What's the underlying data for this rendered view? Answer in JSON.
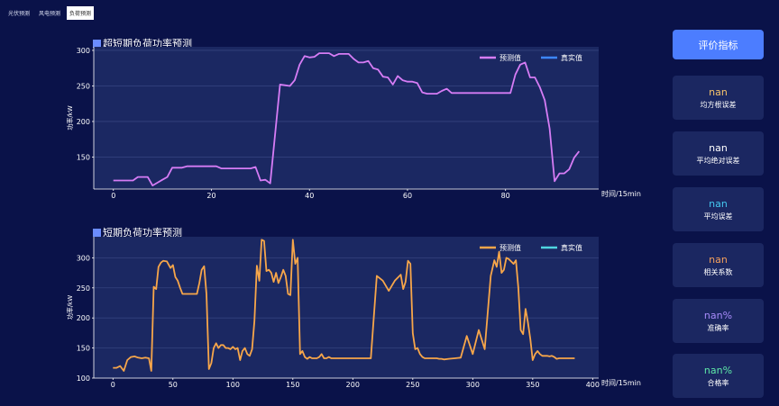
{
  "tabs": [
    {
      "label": "光伏预测",
      "active": false
    },
    {
      "label": "风电预测",
      "active": false
    },
    {
      "label": "负荷预测",
      "active": true
    }
  ],
  "evaluate_button": "评价指标",
  "metrics": [
    {
      "value": "nan",
      "label": "均方根误差",
      "color": "#f5c26b"
    },
    {
      "value": "nan",
      "label": "平均绝对误差",
      "color": "#ffffff"
    },
    {
      "value": "nan",
      "label": "平均误差",
      "color": "#45c8f0"
    },
    {
      "value": "nan",
      "label": "相关系数",
      "color": "#f5a05b"
    },
    {
      "value": "nan%",
      "label": "准确率",
      "color": "#a78bfa"
    },
    {
      "value": "nan%",
      "label": "合格率",
      "color": "#5ee8a8"
    }
  ],
  "chart_data": [
    {
      "type": "line",
      "title": "超短期负荷功率预测",
      "xlabel": "时间/15min",
      "ylabel": "功率/kW",
      "xlim": [
        -4,
        99
      ],
      "ylim": [
        105,
        305
      ],
      "xticks": [
        0,
        20,
        40,
        60,
        80
      ],
      "yticks": [
        150,
        200,
        250,
        300
      ],
      "grid": true,
      "legend_position": "top-right",
      "series": [
        {
          "name": "预测值",
          "color": "#d67cf5",
          "x": [
            0,
            1,
            2,
            3,
            4,
            5,
            6,
            7,
            8,
            9,
            10,
            11,
            12,
            13,
            14,
            15,
            16,
            17,
            18,
            19,
            20,
            21,
            22,
            23,
            24,
            25,
            26,
            27,
            28,
            29,
            30,
            31,
            32,
            33,
            34,
            35,
            36,
            37,
            38,
            39,
            40,
            41,
            42,
            43,
            44,
            45,
            46,
            47,
            48,
            49,
            50,
            51,
            52,
            53,
            54,
            55,
            56,
            57,
            58,
            59,
            60,
            61,
            62,
            63,
            64,
            65,
            66,
            67,
            68,
            69,
            70,
            71,
            72,
            73,
            74,
            75,
            76,
            77,
            78,
            79,
            80,
            81,
            82,
            83,
            84,
            85,
            86,
            87,
            88,
            89,
            90,
            91,
            92,
            93,
            94,
            95
          ],
          "values": [
            117,
            117,
            117,
            117,
            117,
            122,
            122,
            122,
            110,
            114,
            118,
            122,
            135,
            135,
            135,
            137,
            137,
            137,
            137,
            137,
            137,
            137,
            134,
            134,
            134,
            134,
            134,
            134,
            134,
            136,
            117,
            118,
            113,
            183,
            252,
            251,
            250,
            258,
            280,
            292,
            290,
            291,
            296,
            296,
            296,
            292,
            295,
            295,
            295,
            288,
            283,
            283,
            285,
            275,
            273,
            263,
            262,
            252,
            264,
            258,
            256,
            256,
            254,
            241,
            239,
            239,
            239,
            243,
            246,
            240,
            240,
            240,
            240,
            240,
            240,
            240,
            240,
            240,
            240,
            240,
            240,
            240,
            266,
            280,
            283,
            262,
            262,
            248,
            230,
            190,
            116,
            127,
            127,
            133,
            149,
            158
          ]
        },
        {
          "name": "真实值",
          "color": "#3d86ff",
          "x": [],
          "values": []
        }
      ]
    },
    {
      "type": "line",
      "title": "短期负荷功率预测",
      "xlabel": "时间/15min",
      "ylabel": "功率/kW",
      "xlim": [
        -16,
        405
      ],
      "ylim": [
        100,
        335
      ],
      "xticks": [
        0,
        50,
        100,
        150,
        200,
        250,
        300,
        350,
        400
      ],
      "yticks": [
        100,
        150,
        200,
        250,
        300
      ],
      "grid": true,
      "legend_position": "top-right",
      "series": [
        {
          "name": "预测值",
          "color": "#f7a64a",
          "x": [
            0,
            3,
            6,
            9,
            12,
            15,
            18,
            21,
            24,
            27,
            30,
            32,
            34,
            36,
            38,
            40,
            42,
            45,
            48,
            50,
            52,
            54,
            56,
            58,
            60,
            62,
            64,
            66,
            68,
            70,
            72,
            74,
            76,
            78,
            80,
            82,
            84,
            86,
            88,
            90,
            92,
            94,
            96,
            98,
            100,
            102,
            104,
            106,
            108,
            110,
            112,
            114,
            116,
            118,
            120,
            122,
            124,
            126,
            128,
            130,
            132,
            134,
            136,
            138,
            140,
            142,
            144,
            146,
            148,
            150,
            152,
            154,
            156,
            158,
            160,
            162,
            164,
            166,
            168,
            170,
            172,
            174,
            176,
            178,
            180,
            182,
            184,
            186,
            190,
            195,
            200,
            205,
            210,
            215,
            220,
            225,
            230,
            235,
            240,
            242,
            244,
            246,
            248,
            250,
            252,
            254,
            256,
            258,
            260,
            262,
            264,
            266,
            268,
            270,
            272,
            274,
            276,
            280,
            285,
            290,
            295,
            300,
            305,
            310,
            315,
            318,
            320,
            322,
            324,
            326,
            328,
            330,
            332,
            334,
            336,
            338,
            340,
            342,
            344,
            346,
            348,
            350,
            352,
            354,
            356,
            358,
            360,
            362,
            364,
            366,
            368,
            370,
            372,
            375,
            380,
            385
          ],
          "values": [
            117,
            117,
            120,
            112,
            130,
            135,
            136,
            134,
            133,
            134,
            133,
            112,
            252,
            248,
            285,
            292,
            295,
            294,
            283,
            288,
            268,
            262,
            250,
            240,
            240,
            240,
            240,
            240,
            240,
            240,
            258,
            280,
            286,
            240,
            115,
            125,
            150,
            158,
            150,
            155,
            155,
            150,
            150,
            148,
            152,
            148,
            150,
            130,
            145,
            150,
            140,
            137,
            148,
            195,
            287,
            262,
            330,
            328,
            278,
            280,
            275,
            260,
            275,
            258,
            268,
            280,
            270,
            240,
            238,
            330,
            290,
            300,
            140,
            145,
            135,
            132,
            135,
            133,
            133,
            133,
            135,
            140,
            133,
            133,
            135,
            133,
            133,
            133,
            133,
            133,
            133,
            133,
            133,
            133,
            270,
            262,
            245,
            262,
            272,
            248,
            260,
            295,
            290,
            175,
            148,
            150,
            140,
            135,
            133,
            133,
            133,
            133,
            133,
            133,
            132,
            132,
            131,
            132,
            133,
            134,
            170,
            140,
            180,
            148,
            270,
            296,
            285,
            310,
            275,
            280,
            300,
            298,
            294,
            290,
            296,
            250,
            180,
            173,
            215,
            193,
            165,
            130,
            140,
            145,
            140,
            137,
            137,
            137,
            136,
            137,
            135,
            132,
            133,
            133,
            133,
            133
          ],
          "x_note": ""
        },
        {
          "name": "真实值",
          "color": "#4fd6e0",
          "x": [],
          "values": []
        }
      ]
    }
  ]
}
